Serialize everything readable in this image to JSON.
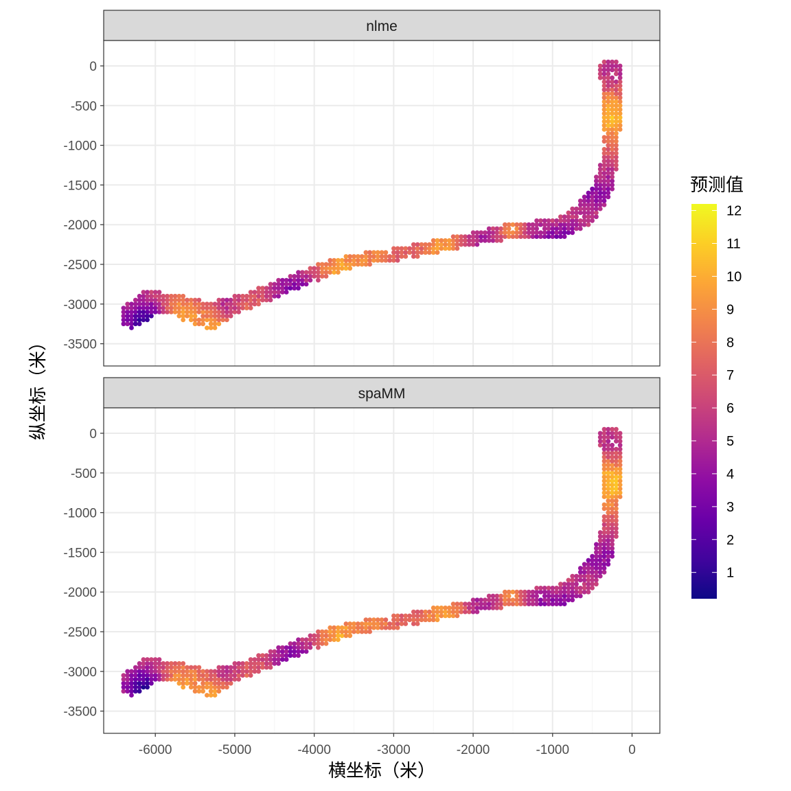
{
  "chart_data": {
    "type": "scatter",
    "panels": [
      {
        "name": "nlme",
        "seed": 1
      },
      {
        "name": "spaMM",
        "seed": 2
      }
    ],
    "xlabel": "横坐标（米）",
    "ylabel": "纵坐标（米）",
    "xlim": [
      -6650,
      350
    ],
    "ylim": [
      -3780,
      320
    ],
    "x_ticks": [
      -6000,
      -5000,
      -4000,
      -3000,
      -2000,
      -1000,
      0
    ],
    "x_tick_labels": [
      "-6000",
      "-5000",
      "-4000",
      "-3000",
      "-2000",
      "-1000",
      "0"
    ],
    "y_ticks": [
      0,
      -500,
      -1000,
      -1500,
      -2000,
      -2500,
      -3000,
      -3500
    ],
    "y_tick_labels": [
      "0",
      "-500",
      "-1000",
      "-1500",
      "-2000",
      "-2500",
      "-3000",
      "-3500"
    ],
    "grid": true,
    "legend": {
      "title": "预测值",
      "position": "right",
      "min": 0.2,
      "max": 12.2,
      "ticks": [
        1,
        2,
        3,
        4,
        5,
        6,
        7,
        8,
        9,
        10,
        11,
        12
      ],
      "tick_labels": [
        "1",
        "2",
        "3",
        "4",
        "5",
        "6",
        "7",
        "8",
        "9",
        "10",
        "11",
        "12"
      ],
      "palette": "plasma",
      "colors": [
        "#0d0887",
        "#41049d",
        "#6a00a8",
        "#8f0da4",
        "#b12a90",
        "#cc4778",
        "#e16462",
        "#f2844b",
        "#fca636",
        "#fcce25",
        "#f0f921"
      ]
    },
    "grid_spacing": 50,
    "region_path": [
      [
        -6300,
        -3150
      ],
      [
        -6100,
        -3000
      ],
      [
        -5800,
        -2980
      ],
      [
        -5550,
        -3080
      ],
      [
        -5300,
        -3150
      ],
      [
        -5050,
        -3020
      ],
      [
        -4800,
        -2950
      ],
      [
        -4500,
        -2820
      ],
      [
        -4200,
        -2700
      ],
      [
        -3900,
        -2580
      ],
      [
        -3600,
        -2480
      ],
      [
        -3300,
        -2420
      ],
      [
        -3000,
        -2380
      ],
      [
        -2700,
        -2320
      ],
      [
        -2400,
        -2260
      ],
      [
        -2100,
        -2200
      ],
      [
        -1800,
        -2130
      ],
      [
        -1500,
        -2080
      ],
      [
        -1200,
        -2060
      ],
      [
        -900,
        -2040
      ],
      [
        -600,
        -1880
      ],
      [
        -380,
        -1560
      ],
      [
        -280,
        -1200
      ],
      [
        -260,
        -800
      ],
      [
        -250,
        -400
      ],
      [
        -280,
        -50
      ]
    ],
    "region_radius": [
      150,
      170,
      120,
      160,
      170,
      110,
      100,
      100,
      100,
      100,
      90,
      80,
      80,
      80,
      80,
      80,
      90,
      100,
      110,
      140,
      150,
      130,
      110,
      110,
      120,
      140
    ],
    "hotspots": [
      {
        "x": -6120,
        "y": -3230,
        "value": 1.0,
        "r": 210
      },
      {
        "x": -5200,
        "y": -3350,
        "value": 10.5,
        "r": 260
      },
      {
        "x": -5750,
        "y": -3120,
        "value": 9.5,
        "r": 170
      },
      {
        "x": -5100,
        "y": -3050,
        "value": 3.5,
        "r": 150
      },
      {
        "x": -4800,
        "y": -3120,
        "value": 7.5,
        "r": 180
      },
      {
        "x": -4250,
        "y": -2850,
        "value": 3.3,
        "r": 200
      },
      {
        "x": -3700,
        "y": -2570,
        "value": 9.5,
        "r": 180
      },
      {
        "x": -3250,
        "y": -2420,
        "value": 8.5,
        "r": 220
      },
      {
        "x": -2350,
        "y": -2280,
        "value": 9.5,
        "r": 220
      },
      {
        "x": -1900,
        "y": -2150,
        "value": 4.5,
        "r": 200
      },
      {
        "x": -1500,
        "y": -2070,
        "value": 9.8,
        "r": 130
      },
      {
        "x": -1250,
        "y": -2100,
        "value": 4.8,
        "r": 180
      },
      {
        "x": -1000,
        "y": -1900,
        "value": 7.5,
        "r": 170
      },
      {
        "x": -820,
        "y": -2180,
        "value": 3.0,
        "r": 230
      },
      {
        "x": -560,
        "y": -1800,
        "value": 8.5,
        "r": 220
      },
      {
        "x": -650,
        "y": -1620,
        "value": 3.5,
        "r": 170
      },
      {
        "x": -230,
        "y": -1720,
        "value": 3.5,
        "r": 250
      },
      {
        "x": -400,
        "y": -1350,
        "value": 6.0,
        "r": 180
      },
      {
        "x": -250,
        "y": -600,
        "value": 10.5,
        "r": 230
      },
      {
        "x": -250,
        "y": -150,
        "value": 5.0,
        "r": 200
      },
      {
        "x": -300,
        "y": -1000,
        "value": 7.0,
        "r": 200
      }
    ],
    "base_value": 6.6
  }
}
